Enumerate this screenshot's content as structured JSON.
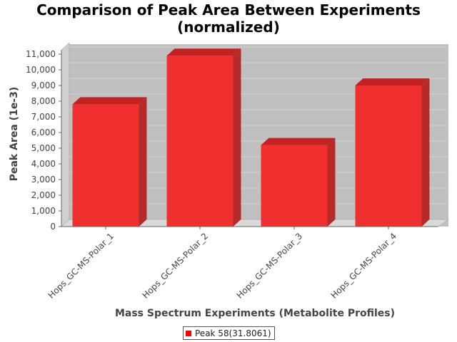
{
  "chart_data": {
    "type": "bar",
    "title": "Comparison of Peak Area Between Experiments (normalized)",
    "title_lines": [
      "Comparison of Peak Area Between Experiments",
      "(normalized)"
    ],
    "xlabel": "Mass Spectrum Experiments (Metabolite Profiles)",
    "ylabel": "Peak Area (1e-3)",
    "categories": [
      "Hops_GC-MS-Polar_1",
      "Hops_GC-MS-Polar_2",
      "Hops_GC-MS-Polar_3",
      "Hops_GC-MS-Polar_4"
    ],
    "series": [
      {
        "name": "Peak 58(31.8061)",
        "color": "#ff0000",
        "values": [
          7800,
          10900,
          5200,
          9000
        ]
      }
    ],
    "ylim": [
      0,
      11000
    ],
    "yticks": [
      0,
      1000,
      2000,
      3000,
      4000,
      5000,
      6000,
      7000,
      8000,
      9000,
      10000,
      11000
    ],
    "ytick_labels": [
      "0",
      "1,000",
      "2,000",
      "3,000",
      "4,000",
      "5,000",
      "6,000",
      "7,000",
      "8,000",
      "9,000",
      "10,000",
      "11,000"
    ],
    "grid": true,
    "legend_position": "bottom",
    "style": "3d"
  }
}
